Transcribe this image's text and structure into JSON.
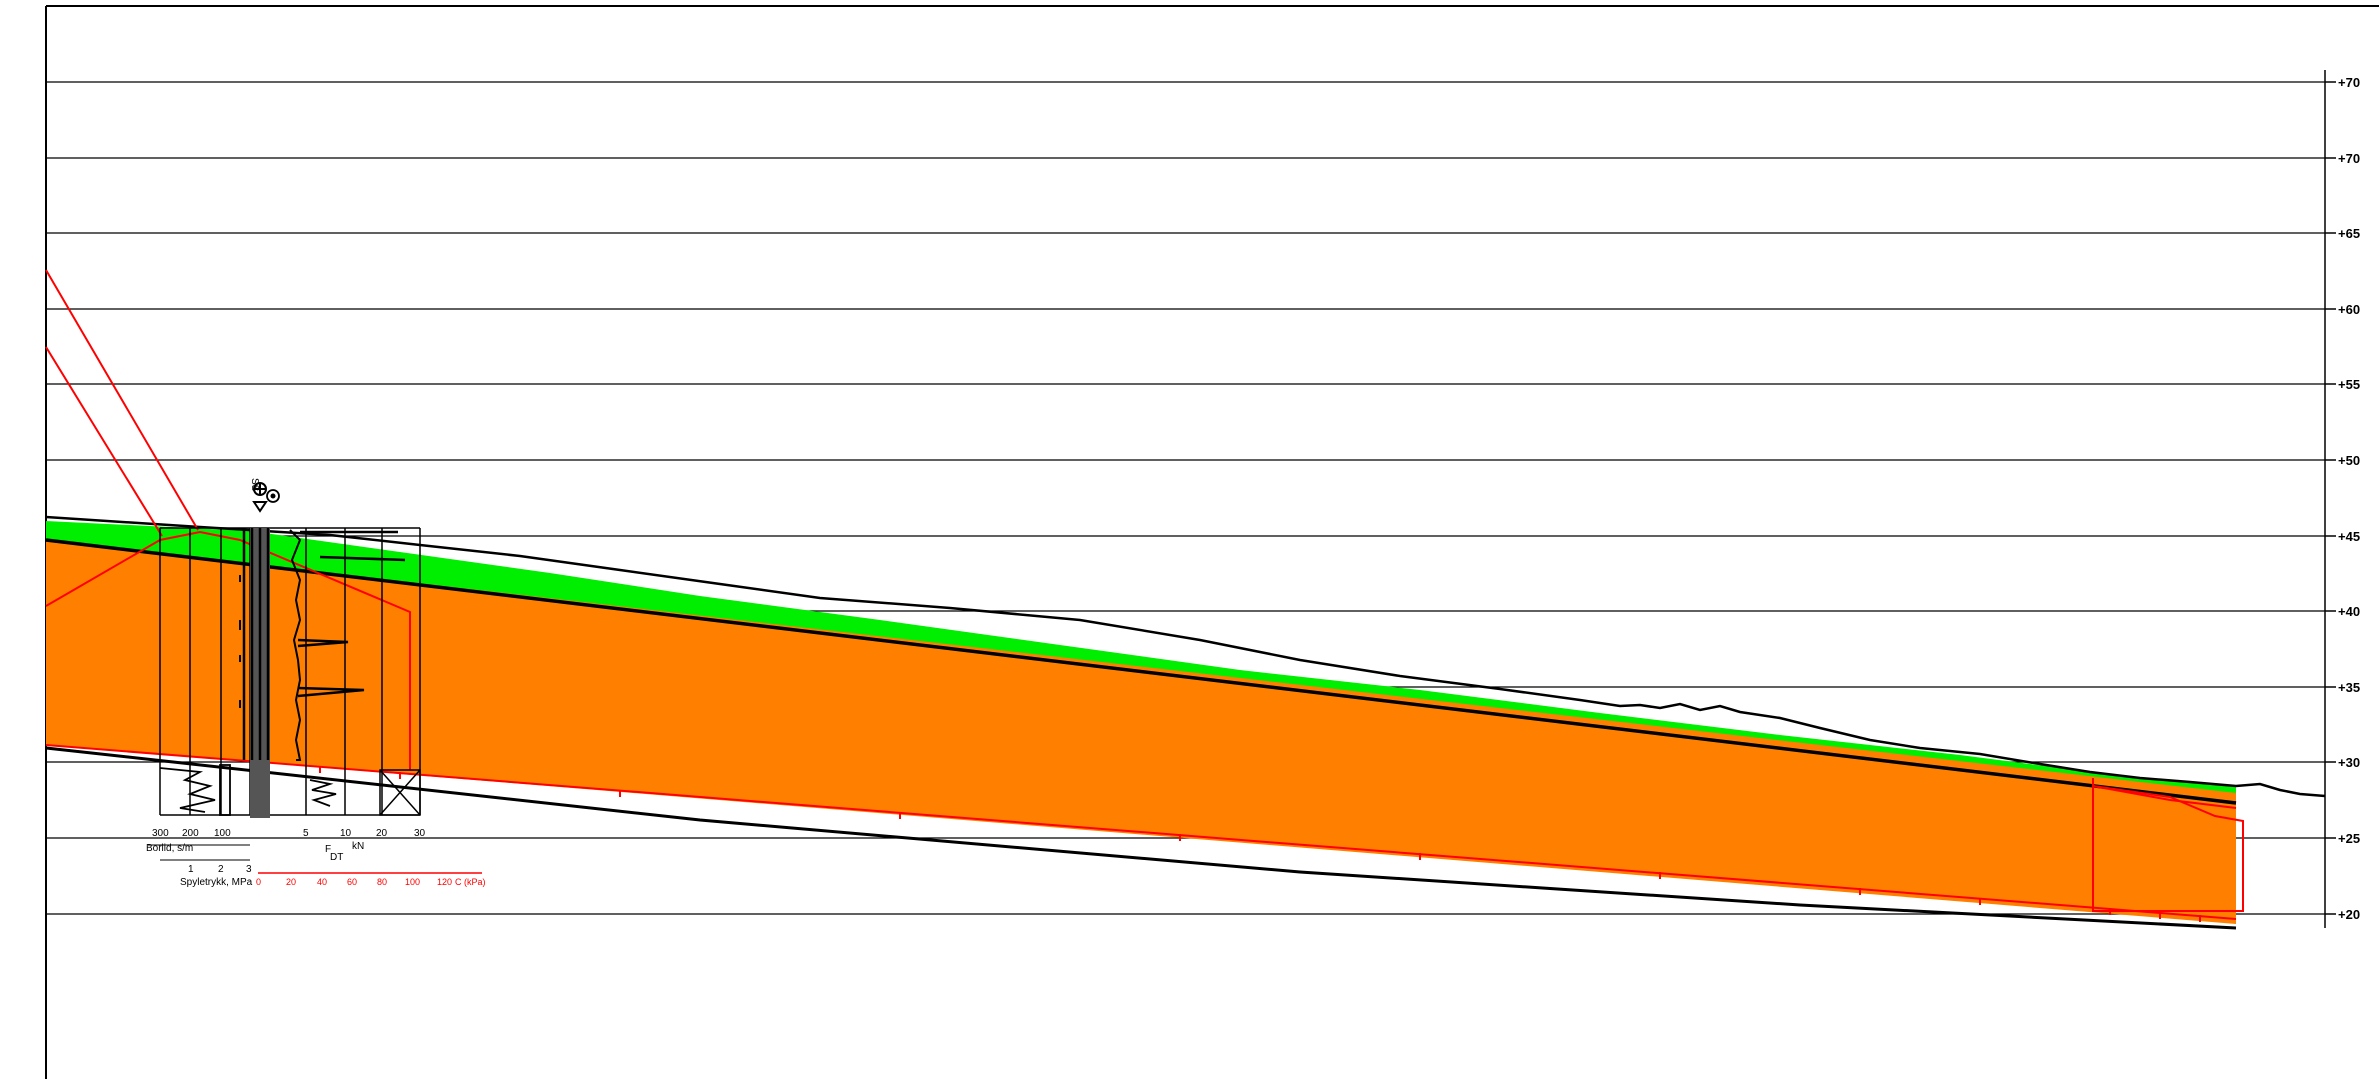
{
  "elevation_axis": {
    "labels": [
      "+70",
      "+70",
      "+65",
      "+60",
      "+55",
      "+50",
      "+45",
      "+40",
      "+35",
      "+30",
      "+25",
      "+20"
    ]
  },
  "borehole": {
    "symbol_label": "SS",
    "borlid_scale": {
      "ticks": [
        "300",
        "200",
        "100"
      ],
      "title": "Borlid, s/m"
    },
    "spyletrykk_scale": {
      "ticks": [
        "1",
        "2",
        "3"
      ],
      "title": "Spyletrykk, MPa"
    },
    "force_scale": {
      "ticks": [
        "5",
        "10",
        "20",
        "30"
      ],
      "title_main": "F",
      "title_sub": "DT",
      "unit": "kN"
    },
    "red_scale": {
      "ticks": [
        "0",
        "20",
        "40",
        "60",
        "80",
        "100",
        "120"
      ],
      "unit": "C (kPa)"
    }
  },
  "colors": {
    "clay": "#ff8000",
    "topsoil": "#00ee00",
    "boundary": "#ff0000",
    "line": "#000000"
  }
}
